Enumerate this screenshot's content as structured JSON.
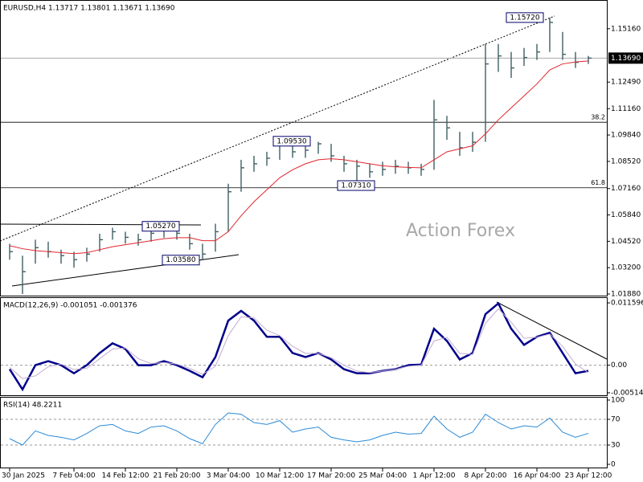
{
  "chart_data": [
    {
      "type": "ohlc",
      "title": "EURUSD,H4",
      "quote": "1.13717 1.13801 1.13671 1.13690",
      "watermark": "Action Forex",
      "categories": [
        "30 Jan 2025",
        null,
        null,
        null,
        null,
        "7 Feb 04:00",
        null,
        null,
        null,
        "14 Feb 12:00",
        null,
        null,
        null,
        "21 Feb 20:00",
        null,
        null,
        null,
        "3 Mar 04:00",
        null,
        null,
        null,
        "10 Mar 12:00",
        null,
        null,
        null,
        "17 Mar 20:00",
        null,
        null,
        null,
        "25 Mar 04:00",
        null,
        null,
        null,
        "1 Apr 12:00",
        null,
        null,
        null,
        "8 Apr 20:00",
        null,
        null,
        null,
        "16 Apr 04:00",
        null,
        null,
        null,
        "23 Apr 12:00"
      ],
      "color": "#3f5f63",
      "high": [
        1.044,
        1.038,
        1.046,
        1.045,
        1.041,
        1.04,
        1.042,
        1.049,
        1.052,
        1.05,
        1.049,
        1.052,
        1.0527,
        1.052,
        1.049,
        1.044,
        1.054,
        1.074,
        1.086,
        1.088,
        1.09,
        1.0953,
        1.095,
        1.094,
        1.095,
        1.094,
        1.088,
        1.086,
        1.084,
        1.085,
        1.086,
        1.085,
        1.084,
        1.116,
        1.108,
        1.1,
        1.1,
        1.144,
        1.144,
        1.14,
        1.142,
        1.144,
        1.1572,
        1.15,
        1.14,
        1.138
      ],
      "low": [
        1.036,
        1.0188,
        1.034,
        1.037,
        1.034,
        1.032,
        1.035,
        1.04,
        1.046,
        1.044,
        1.043,
        1.045,
        1.047,
        1.046,
        1.041,
        1.0358,
        1.04,
        1.05,
        1.07,
        1.08,
        1.083,
        1.086,
        1.087,
        1.087,
        1.089,
        1.085,
        1.08,
        1.0731,
        1.077,
        1.078,
        1.079,
        1.079,
        1.078,
        1.081,
        1.096,
        1.088,
        1.09,
        1.095,
        1.13,
        1.127,
        1.133,
        1.136,
        1.14,
        1.136,
        1.132,
        1.134
      ],
      "close": [
        1.04,
        1.03,
        1.042,
        1.04,
        1.038,
        1.036,
        1.0388,
        1.046,
        1.05,
        1.0472,
        1.046,
        1.0492,
        1.0508,
        1.0492,
        1.044,
        1.0388,
        1.05,
        1.07,
        1.082,
        1.084,
        1.0868,
        1.0948,
        1.09,
        1.0908,
        1.094,
        1.088,
        1.084,
        1.0828,
        1.08,
        1.0812,
        1.0828,
        1.082,
        1.0812,
        1.106,
        1.102,
        1.092,
        1.0948,
        1.134,
        1.138,
        1.132,
        1.1372,
        1.14,
        1.1548,
        1.1388,
        1.1348,
        1.1369
      ],
      "ma": {
        "color": "#e0262e",
        "values": [
          1.043,
          1.0415,
          1.0405,
          1.04,
          1.0395,
          1.039,
          1.0395,
          1.041,
          1.0425,
          1.0435,
          1.0445,
          1.0455,
          1.0465,
          1.047,
          1.047,
          1.0455,
          1.0455,
          1.05,
          1.058,
          1.065,
          1.071,
          1.077,
          1.081,
          1.084,
          1.086,
          1.0865,
          1.086,
          1.085,
          1.084,
          1.083,
          1.0825,
          1.0822,
          1.082,
          1.086,
          1.09,
          1.0915,
          1.093,
          1.099,
          1.106,
          1.112,
          1.118,
          1.124,
          1.131,
          1.134,
          1.135,
          1.1355
        ]
      },
      "ylim": [
        1.018,
        1.166
      ],
      "yticks": [
        {
          "value": 1.1516,
          "label": "1.15160"
        },
        {
          "value": 1.1249,
          "label": "1.12490"
        },
        {
          "value": 1.1116,
          "label": "1.11160"
        },
        {
          "value": 1.0984,
          "label": "1.09840"
        },
        {
          "value": 1.0852,
          "label": "1.08520"
        },
        {
          "value": 1.0716,
          "label": "1.07160"
        },
        {
          "value": 1.0584,
          "label": "1.05840"
        },
        {
          "value": 1.0452,
          "label": "1.04520"
        },
        {
          "value": 1.032,
          "label": "1.03200"
        },
        {
          "value": 1.0188,
          "label": "1.01880"
        }
      ],
      "last": {
        "value": 1.1369,
        "label": "1.13690"
      },
      "levels": [
        {
          "value": 1.1048,
          "label": "38.2"
        },
        {
          "value": 1.072,
          "label": "61.8"
        }
      ],
      "annotations": [
        {
          "value": 1.1572,
          "label": "1.15720"
        },
        {
          "value": 1.0953,
          "label": "1.09530"
        },
        {
          "value": 1.0731,
          "label": "1.07310"
        },
        {
          "value": 1.0527,
          "label": "1.05270"
        },
        {
          "value": 1.0358,
          "label": "1.03580"
        }
      ]
    },
    {
      "type": "line",
      "title": "MACD(12,26,9) -0.001051 -0.001376",
      "series": [
        {
          "color": "#00008b",
          "width": 2.5,
          "values": [
            -0.00075,
            -0.00452,
            0,
            0.00075,
            0,
            -0.00151,
            0,
            0.00226,
            0.00407,
            0.00302,
            0,
            0,
            0.00075,
            0,
            -0.00106,
            -0.00226,
            0.00151,
            0.0083,
            0.01011,
            0.0083,
            0.00528,
            0.00528,
            0.00226,
            0.00151,
            0.00226,
            0.00106,
            -0.00075,
            -0.00151,
            -0.00151,
            -0.00106,
            -0.00075,
            0,
            0.0001,
            0.00679,
            0.00452,
            0.00106,
            0.00226,
            0.0095,
            0.0115,
            0.00679,
            0.00377,
            0.00528,
            0.00603,
            0.00226,
            -0.00151,
            -0.001051
          ]
        },
        {
          "color": "#c4aed0",
          "width": 1,
          "values": [
            -0.0004,
            -0.0025,
            -0.002,
            -0.0003,
            0.0002,
            -0.0008,
            -0.0006,
            0.0012,
            0.003,
            0.0032,
            0.0012,
            0.0003,
            0.0005,
            0.0002,
            -0.0006,
            -0.0017,
            -0.0002,
            0.0055,
            0.009,
            0.0088,
            0.0065,
            0.0055,
            0.0035,
            0.0022,
            0.0022,
            0.0014,
            0,
            -0.0011,
            -0.0014,
            -0.0011,
            -0.0008,
            -0.0002,
            0,
            0.0045,
            0.0052,
            0.0022,
            0.002,
            0.0078,
            0.0105,
            0.008,
            0.005,
            0.0052,
            0.0058,
            0.0035,
            0.0002,
            -0.001376
          ]
        }
      ],
      "ylim": [
        -0.0056,
        0.0125
      ],
      "yticks": [
        0.011596,
        {
          "value": 0,
          "label": "0.00"
        },
        -0.005146
      ]
    },
    {
      "type": "line",
      "title": "RSI(14) 48.2211",
      "series": [
        {
          "color": "#2a8ad8",
          "width": 1,
          "values": [
            40,
            30,
            52,
            45,
            42,
            38,
            48,
            60,
            62,
            52,
            48,
            58,
            60,
            52,
            40,
            32,
            62,
            80,
            78,
            65,
            62,
            68,
            50,
            55,
            58,
            42,
            38,
            35,
            38,
            45,
            50,
            47,
            48,
            75,
            55,
            42,
            50,
            78,
            65,
            55,
            60,
            58,
            72,
            50,
            42,
            48.2211
          ]
        }
      ],
      "ylim": [
        0,
        100
      ],
      "yticks": [
        100,
        70,
        30,
        0
      ]
    }
  ]
}
